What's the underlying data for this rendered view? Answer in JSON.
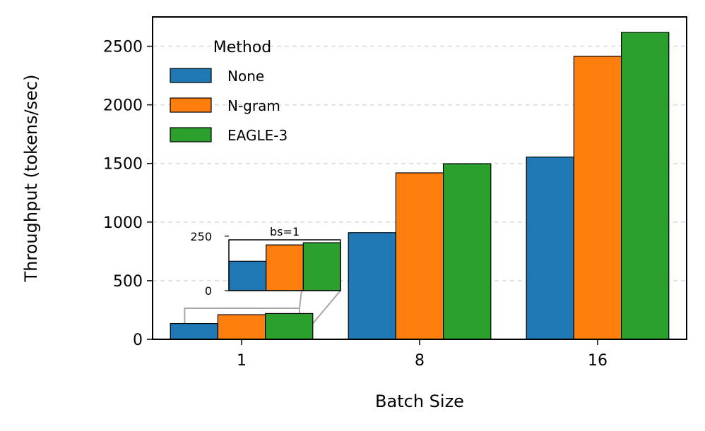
{
  "chart_data": {
    "type": "bar",
    "xlabel": "Batch Size",
    "ylabel": "Throughput (tokens/sec)",
    "categories": [
      "1",
      "8",
      "16"
    ],
    "ylim": [
      0,
      2750
    ],
    "yticks": [
      0,
      500,
      1000,
      1500,
      2000,
      2500
    ],
    "grid": "y-dashed",
    "legend": {
      "title": "Method",
      "placement": "top-left"
    },
    "series": [
      {
        "name": "None",
        "color": "#1f77b4",
        "values": [
          135,
          910,
          1555
        ]
      },
      {
        "name": "N-gram",
        "color": "#ff7f0e",
        "values": [
          210,
          1420,
          2415
        ]
      },
      {
        "name": "EAGLE-3",
        "color": "#2ca02c",
        "values": [
          220,
          1498,
          2618
        ]
      }
    ],
    "inset": {
      "title": "bs=1",
      "category": "1",
      "ylim": [
        0,
        250
      ],
      "yticks": [
        0,
        250
      ]
    }
  }
}
